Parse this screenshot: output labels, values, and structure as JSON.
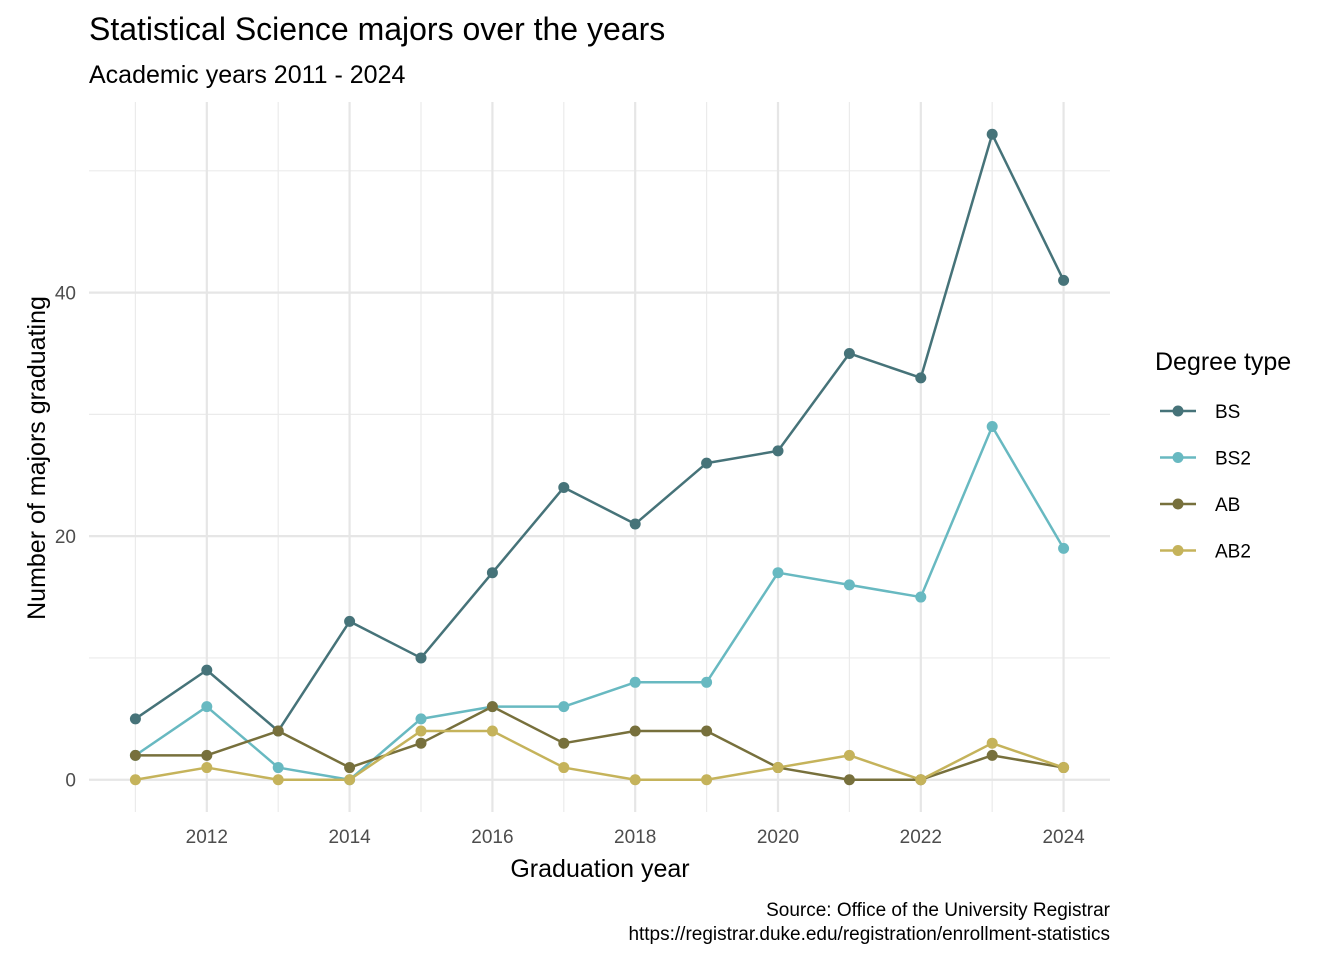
{
  "chart_data": {
    "type": "line",
    "title": "Statistical Science majors over the years",
    "subtitle": "Academic years 2011 - 2024",
    "xlabel": "Graduation year",
    "ylabel": "Number of majors graduating",
    "caption_lines": [
      "Source: Office of the University Registrar",
      "https://registrar.duke.edu/registration/enrollment-statistics"
    ],
    "x": [
      2011,
      2012,
      2013,
      2014,
      2015,
      2016,
      2017,
      2018,
      2019,
      2020,
      2021,
      2022,
      2023,
      2024
    ],
    "x_ticks": [
      2012,
      2014,
      2016,
      2018,
      2020,
      2022,
      2024
    ],
    "y_ticks": [
      0,
      20,
      40
    ],
    "xlim": [
      2010.35,
      2024.65
    ],
    "ylim": [
      -2.65,
      55.65
    ],
    "grid": true,
    "legend": {
      "title": "Degree type",
      "position": "right"
    },
    "series": [
      {
        "name": "BS",
        "color": "#467379",
        "values": [
          5,
          9,
          4,
          13,
          10,
          17,
          24,
          21,
          26,
          27,
          35,
          33,
          53,
          41
        ]
      },
      {
        "name": "BS2",
        "color": "#68b9c1",
        "values": [
          2,
          6,
          1,
          0,
          5,
          6,
          6,
          8,
          8,
          17,
          16,
          15,
          29,
          19
        ]
      },
      {
        "name": "AB",
        "color": "#77703c",
        "values": [
          2,
          2,
          4,
          1,
          3,
          6,
          3,
          4,
          4,
          1,
          0,
          0,
          2,
          1
        ]
      },
      {
        "name": "AB2",
        "color": "#c5b35b",
        "values": [
          0,
          1,
          0,
          0,
          4,
          4,
          1,
          0,
          0,
          1,
          2,
          0,
          3,
          1
        ]
      }
    ]
  }
}
